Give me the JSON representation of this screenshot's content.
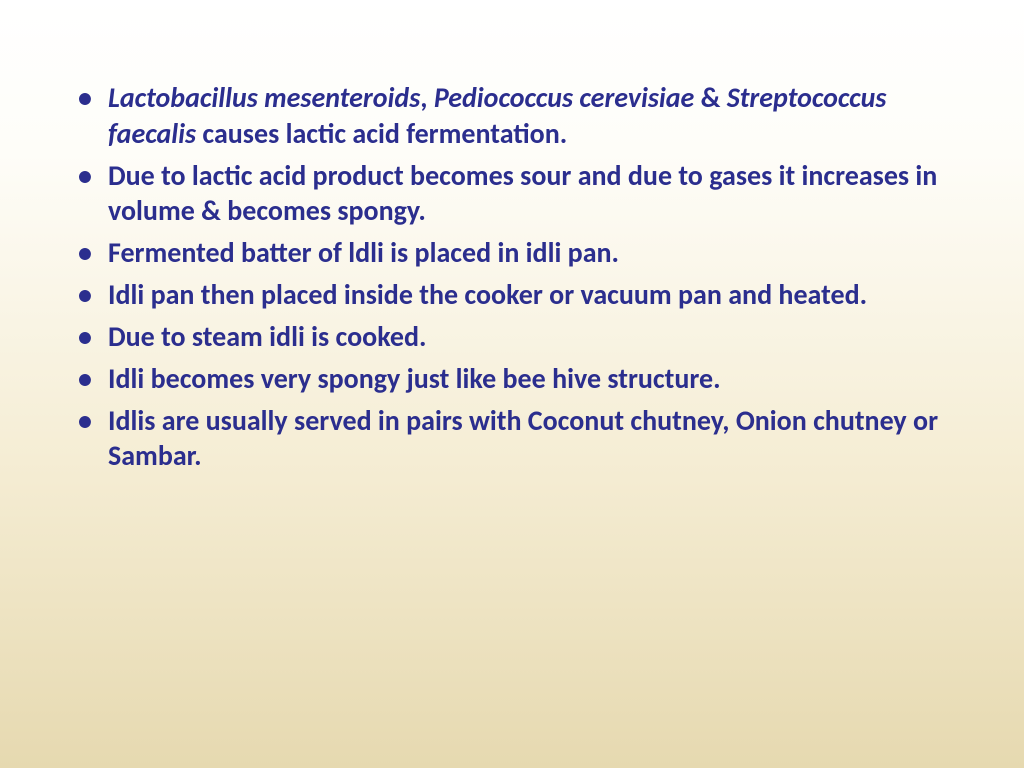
{
  "slide": {
    "text_color": "#2b2e8e",
    "font_size_pt": 28,
    "font_weight": 700,
    "background_gradient": [
      "#ffffff",
      "#fefdf8",
      "#f5edd4",
      "#e6d9b0"
    ],
    "bullets": [
      {
        "segments": [
          {
            "text": "Lactobacillus mesenteroids",
            "italic": true
          },
          {
            "text": ", ",
            "italic": false
          },
          {
            "text": "Pediococcus cerevisiae",
            "italic": true
          },
          {
            "text": " & ",
            "italic": false
          },
          {
            "text": "Streptococcus faecalis",
            "italic": true
          },
          {
            "text": " causes lactic acid fermentation.",
            "italic": false
          }
        ]
      },
      {
        "segments": [
          {
            "text": "Due to lactic acid product becomes sour and due to gases it increases in volume & becomes spongy.",
            "italic": false
          }
        ]
      },
      {
        "segments": [
          {
            "text": "Fermented batter of ldli is placed in idli pan.",
            "italic": false
          }
        ]
      },
      {
        "segments": [
          {
            "text": "Idli pan then placed inside the cooker or vacuum pan and heated.",
            "italic": false
          }
        ]
      },
      {
        "segments": [
          {
            "text": "Due to steam idli is cooked.",
            "italic": false
          }
        ]
      },
      {
        "segments": [
          {
            "text": "Idli becomes very spongy just like bee hive structure.",
            "italic": false
          }
        ]
      },
      {
        "segments": [
          {
            "text": " Idlis are usually served in pairs with Coconut chutney, Onion chutney or Sambar.",
            "italic": false
          }
        ]
      }
    ]
  }
}
